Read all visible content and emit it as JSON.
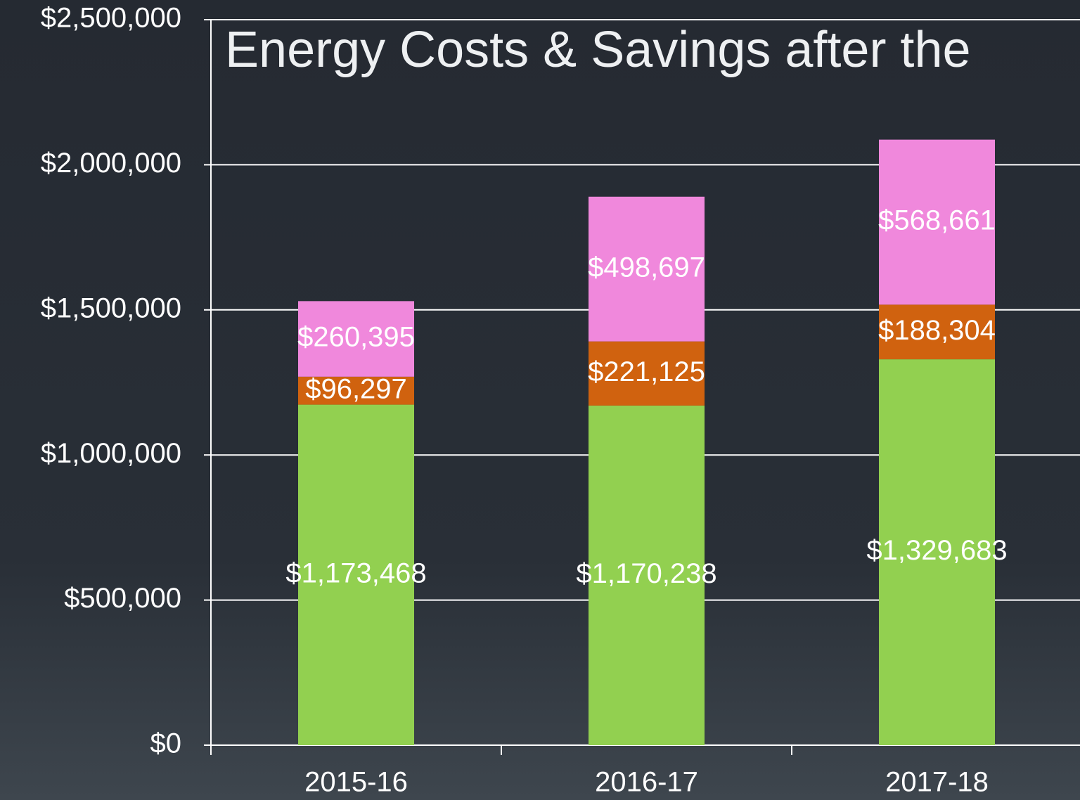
{
  "chart_data": {
    "type": "stacked_bar",
    "title": "Energy Costs & Savings after the",
    "categories": [
      "2015-16",
      "2016-17",
      "2017-18"
    ],
    "series": [
      {
        "color": "#92d050",
        "values": [
          1173468,
          1170238,
          1329683
        ],
        "value_labels": [
          "$1,173,468",
          "$1,170,238",
          "$1,329,683"
        ]
      },
      {
        "color": "#d0620f",
        "values": [
          96297,
          221125,
          188304
        ],
        "value_labels": [
          "$96,297",
          "$221,125",
          "$188,304"
        ]
      },
      {
        "color": "#f088dc",
        "values": [
          260395,
          498697,
          568661
        ],
        "value_labels": [
          "$260,395",
          "$498,697",
          "$568,661"
        ]
      }
    ],
    "ylim": [
      0,
      2500000
    ],
    "yticks": [
      {
        "value": 0,
        "label": "$0"
      },
      {
        "value": 500000,
        "label": "$500,000"
      },
      {
        "value": 1000000,
        "label": "$1,000,000"
      },
      {
        "value": 1500000,
        "label": "$1,500,000"
      },
      {
        "value": 2000000,
        "label": "$2,000,000"
      },
      {
        "value": 2500000,
        "label": "$2,500,000"
      }
    ],
    "grid": true
  }
}
